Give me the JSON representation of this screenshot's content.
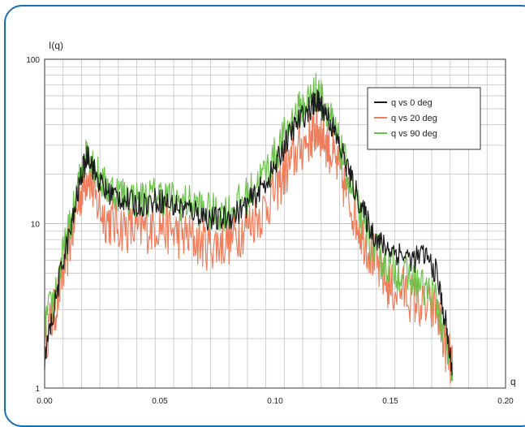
{
  "chart_data": {
    "type": "line",
    "title": "",
    "xlabel": "q",
    "ylabel": "I(q)",
    "xlim": [
      0.0,
      0.2
    ],
    "ylim": [
      1,
      100
    ],
    "yscale": "log",
    "grid": true,
    "legend_placement": "top-right",
    "x_ticks": [
      "0.00",
      "0.05",
      "0.10",
      "0.15",
      "0.20"
    ],
    "y_ticks": [
      "1",
      "10",
      "100"
    ],
    "series": [
      {
        "name": "q vs 0 deg",
        "color": "#1a1a1a",
        "x": [
          0.0,
          0.004,
          0.008,
          0.012,
          0.016,
          0.019,
          0.022,
          0.026,
          0.03,
          0.035,
          0.04,
          0.045,
          0.05,
          0.055,
          0.06,
          0.065,
          0.07,
          0.075,
          0.08,
          0.085,
          0.09,
          0.095,
          0.1,
          0.104,
          0.108,
          0.112,
          0.116,
          0.118,
          0.12,
          0.123,
          0.126,
          0.13,
          0.134,
          0.138,
          0.142,
          0.146,
          0.15,
          0.155,
          0.16,
          0.165,
          0.17,
          0.174,
          0.177
        ],
        "y": [
          1.5,
          3.0,
          6.0,
          10.0,
          20.0,
          27.0,
          20.0,
          16.0,
          15.0,
          14.0,
          13.0,
          13.5,
          14.0,
          13.0,
          12.5,
          12.0,
          11.0,
          10.5,
          11.0,
          12.0,
          14.0,
          17.0,
          22.0,
          30.0,
          38.0,
          45.0,
          52.0,
          55.0,
          52.0,
          45.0,
          35.0,
          25.0,
          17.0,
          12.0,
          9.0,
          7.5,
          7.0,
          6.5,
          6.0,
          6.5,
          5.0,
          2.5,
          1.2
        ]
      },
      {
        "name": "q vs 20 deg",
        "color": "#f07c5a",
        "x": [
          0.0,
          0.004,
          0.008,
          0.012,
          0.016,
          0.019,
          0.022,
          0.026,
          0.03,
          0.035,
          0.04,
          0.045,
          0.05,
          0.055,
          0.06,
          0.065,
          0.07,
          0.075,
          0.08,
          0.085,
          0.09,
          0.095,
          0.1,
          0.104,
          0.108,
          0.112,
          0.116,
          0.118,
          0.12,
          0.123,
          0.126,
          0.13,
          0.134,
          0.138,
          0.142,
          0.146,
          0.15,
          0.155,
          0.16,
          0.165,
          0.17,
          0.174,
          0.177
        ],
        "y": [
          2.0,
          2.8,
          5.0,
          9.0,
          16.0,
          21.0,
          14.0,
          11.0,
          10.0,
          9.5,
          9.0,
          9.5,
          10.0,
          9.0,
          8.5,
          8.0,
          7.5,
          7.5,
          8.0,
          9.0,
          10.5,
          12.0,
          16.0,
          20.0,
          25.0,
          30.0,
          35.0,
          38.0,
          36.0,
          30.0,
          24.0,
          17.0,
          12.0,
          8.5,
          6.5,
          5.0,
          4.0,
          4.0,
          3.5,
          3.0,
          3.0,
          1.8,
          1.3
        ]
      },
      {
        "name": "q vs 90 deg",
        "color": "#6cc24a",
        "x": [
          0.0,
          0.004,
          0.008,
          0.012,
          0.016,
          0.019,
          0.022,
          0.026,
          0.03,
          0.035,
          0.04,
          0.045,
          0.05,
          0.055,
          0.06,
          0.065,
          0.07,
          0.075,
          0.08,
          0.085,
          0.09,
          0.095,
          0.1,
          0.104,
          0.108,
          0.112,
          0.116,
          0.118,
          0.12,
          0.123,
          0.126,
          0.13,
          0.134,
          0.138,
          0.142,
          0.146,
          0.15,
          0.155,
          0.16,
          0.165,
          0.17,
          0.174,
          0.177
        ],
        "y": [
          2.5,
          3.5,
          6.5,
          11.0,
          21.0,
          29.0,
          21.0,
          17.0,
          16.0,
          15.0,
          14.0,
          14.5,
          15.0,
          14.0,
          13.5,
          13.0,
          12.0,
          11.5,
          12.0,
          13.5,
          16.0,
          20.0,
          26.0,
          34.0,
          44.0,
          52.0,
          60.0,
          64.0,
          58.0,
          48.0,
          36.0,
          24.0,
          15.0,
          10.0,
          7.5,
          6.0,
          5.5,
          5.0,
          4.5,
          4.0,
          3.5,
          1.8,
          1.1
        ]
      }
    ]
  }
}
